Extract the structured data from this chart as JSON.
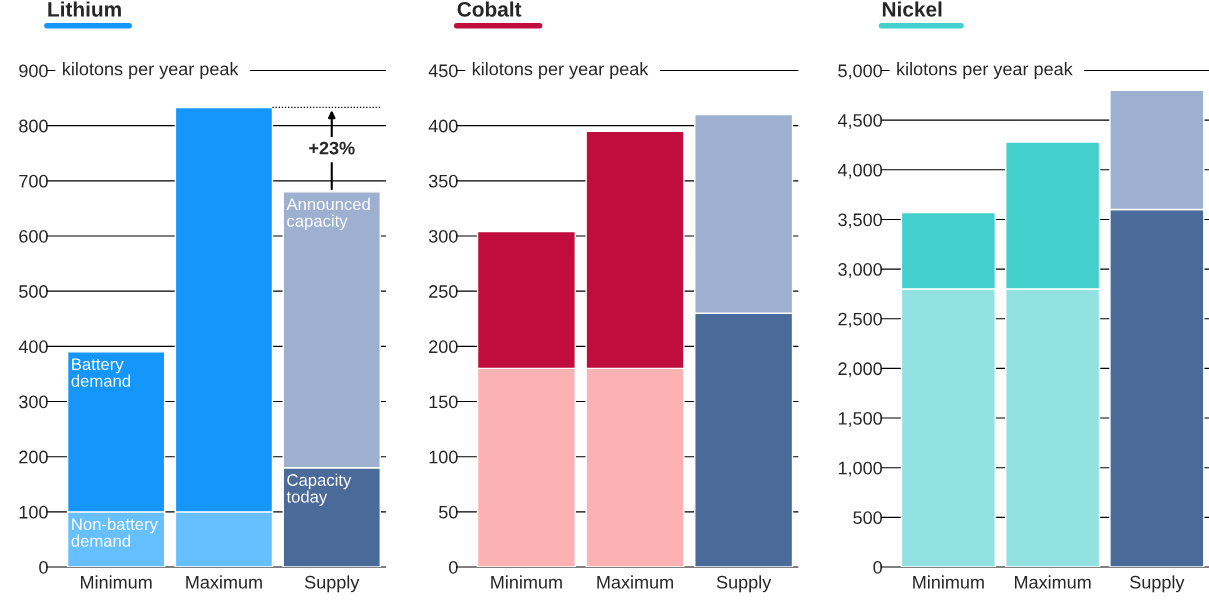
{
  "chart_data": [
    {
      "type": "bar",
      "title": "Lithium",
      "ylabel": "kilotons per year peak",
      "categories": [
        "Minimum",
        "Maximum",
        "Supply"
      ],
      "stacked": true,
      "grid": "y",
      "series": [
        {
          "colors": [
            "#66bfff",
            "#66bfff",
            "#4a6a99"
          ],
          "values": [
            100,
            100,
            180
          ]
        },
        {
          "colors": [
            "#1496fa",
            "#1496fa",
            "#9db0cf"
          ],
          "values": [
            290,
            733,
            500
          ]
        }
      ],
      "ylim": [
        0,
        900
      ],
      "yticks": [
        0,
        100,
        200,
        300,
        400,
        500,
        600,
        700,
        800,
        900
      ],
      "annotations": [
        {
          "text": "Battery demand",
          "x": "Minimum",
          "y": 390
        },
        {
          "text": "Non-battery demand",
          "x": "Minimum",
          "y": 100
        },
        {
          "text": "Announced capacity",
          "x": "Supply",
          "y": 680
        },
        {
          "text": "Capacity today",
          "x": "Supply",
          "y": 180
        },
        "+23%"
      ]
    },
    {
      "type": "bar",
      "title": "Cobalt",
      "ylabel": "kilotons per year peak",
      "categories": [
        "Minimum",
        "Maximum",
        "Supply"
      ],
      "stacked": true,
      "grid": "y",
      "series": [
        {
          "colors": [
            "#fcb2b2",
            "#fcb2b2",
            "#4a6a99"
          ],
          "values": [
            180,
            180,
            230
          ]
        },
        {
          "colors": [
            "#c00d3d",
            "#c00d3d",
            "#9db0cf"
          ],
          "values": [
            124,
            215,
            180
          ]
        }
      ],
      "ylim": [
        0,
        450
      ],
      "yticks": [
        0,
        50,
        100,
        150,
        200,
        250,
        300,
        350,
        400,
        450
      ]
    },
    {
      "type": "bar",
      "title": "Nickel",
      "ylabel": "kilotons per year peak",
      "categories": [
        "Minimum",
        "Maximum",
        "Supply"
      ],
      "stacked": true,
      "grid": "y",
      "series": [
        {
          "colors": [
            "#93e2e2",
            "#93e2e2",
            "#4a6a99"
          ],
          "values": [
            2800,
            2800,
            3600
          ]
        },
        {
          "colors": [
            "#43cfcc",
            "#43cfcc",
            "#9db0cf"
          ],
          "values": [
            770,
            1480,
            1200
          ]
        }
      ],
      "ylim": [
        0,
        5000
      ],
      "yticks": [
        0,
        {
          "value": 500,
          "label": "500"
        },
        {
          "value": 1000,
          "label": "1,000"
        },
        {
          "value": 1500,
          "label": "1,500"
        },
        {
          "value": 2000,
          "label": "2,000"
        },
        {
          "value": 2500,
          "label": "2,500"
        },
        {
          "value": 3000,
          "label": "3,000"
        },
        {
          "value": 3500,
          "label": "3,500"
        },
        {
          "value": 4000,
          "label": "4,000"
        },
        {
          "value": 4500,
          "label": "4,500"
        },
        {
          "value": 5000,
          "label": "5,000"
        }
      ]
    }
  ]
}
